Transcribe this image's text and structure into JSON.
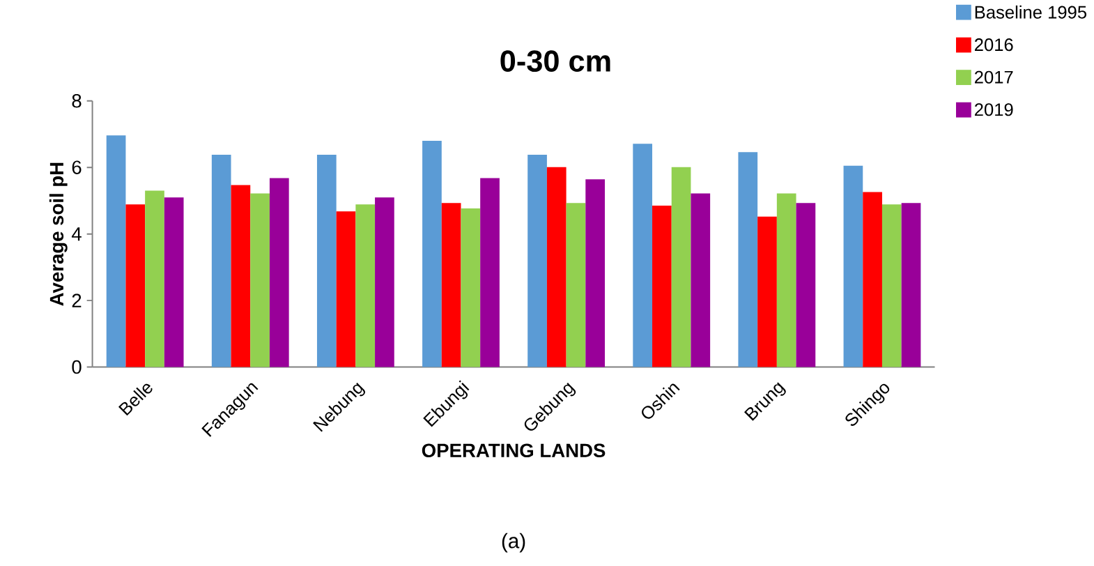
{
  "chart_data": {
    "type": "bar",
    "title": "0-30 cm",
    "xlabel": "OPERATING LANDS",
    "ylabel": "Average soil pH",
    "categories": [
      "Belle",
      "Fanagun",
      "Nebung",
      "Ebungi",
      "Gebung",
      "Oshin",
      "Brung",
      "Shingo"
    ],
    "series": [
      {
        "name": "Baseline 1995",
        "color": "#5b9bd5",
        "values": [
          6.96,
          6.38,
          6.38,
          6.8,
          6.38,
          6.71,
          6.46,
          6.05
        ]
      },
      {
        "name": "2016",
        "color": "#ff0000",
        "values": [
          4.89,
          5.47,
          4.68,
          4.93,
          6.01,
          4.85,
          4.52,
          5.26
        ]
      },
      {
        "name": "2017",
        "color": "#92d050",
        "values": [
          5.3,
          5.22,
          4.89,
          4.77,
          4.93,
          6.01,
          5.22,
          4.89
        ]
      },
      {
        "name": "2019",
        "color": "#990099",
        "values": [
          5.1,
          5.68,
          5.1,
          5.68,
          5.64,
          5.22,
          4.93,
          4.93
        ]
      }
    ],
    "ylim": [
      0,
      8
    ],
    "yticks": [
      0,
      2,
      4,
      6,
      8
    ],
    "grid": false,
    "legend": "top right",
    "annotations": [
      "(a)"
    ]
  }
}
